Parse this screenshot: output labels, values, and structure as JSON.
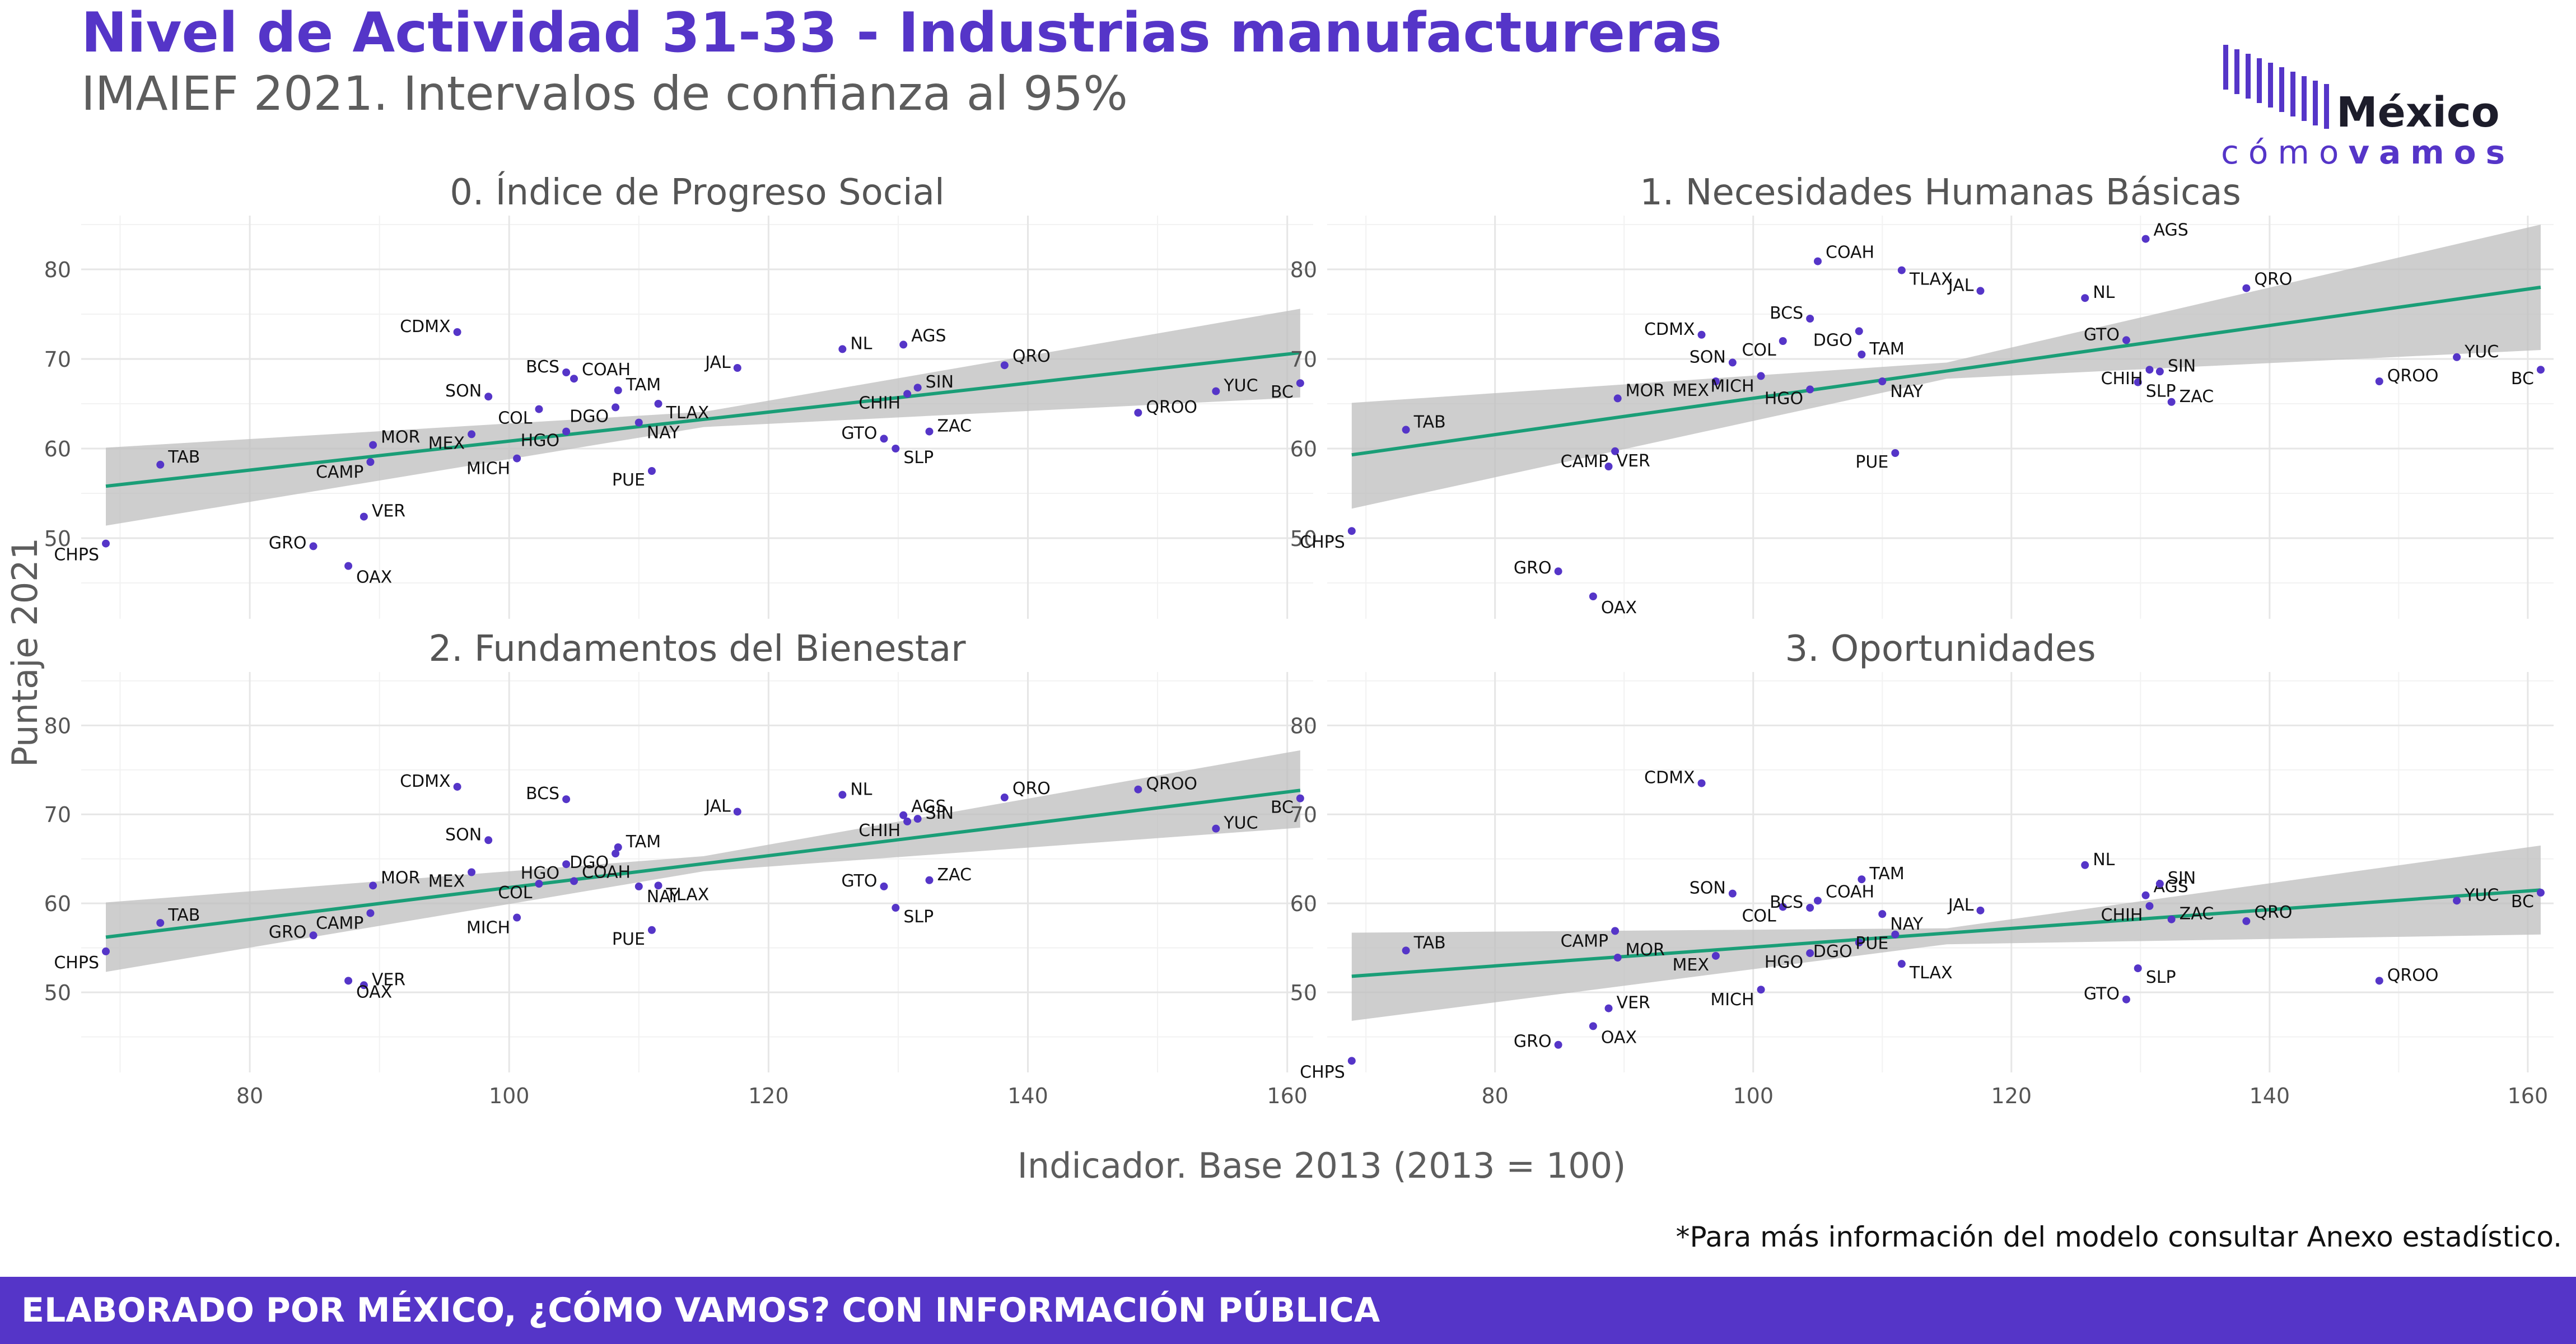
{
  "title": "Nivel de Actividad 31-33 - Industrias manufactureras",
  "subtitle": "IMAIEF 2021. Intervalos de confianza al 95%",
  "logo": {
    "word1": "México",
    "word2_light": "cómo",
    "word2_bold": "vamos"
  },
  "note": "*Para más información del modelo consultar Anexo estadístico.",
  "footer": "ELABORADO POR MÉXICO, ¿CÓMO VAMOS? CON INFORMACIÓN PÚBLICA",
  "colors": {
    "brand": "#5535c8",
    "point": "#5535c8",
    "trend": "#1a9e77",
    "ribbon": "#bdbdbd"
  },
  "chart_data": {
    "type": "scatter",
    "xlabel": "Indicador. Base 2013 (2013 = 100)",
    "ylabel": "Puntaje 2021",
    "xlim": [
      67,
      162
    ],
    "ylim": [
      41,
      86
    ],
    "xticks": [
      80,
      100,
      120,
      140,
      160
    ],
    "yticks": [
      50,
      60,
      70,
      80
    ],
    "grid": true,
    "x": {
      "CHPS": 68.9,
      "TAB": 73.1,
      "GRO": 84.9,
      "CAMP": 89.3,
      "VER": 88.8,
      "OAX": 87.6,
      "MOR": 89.5,
      "MEX": 97.1,
      "SON": 98.4,
      "CDMX": 96.0,
      "MICH": 100.6,
      "COL": 102.3,
      "HGO": 104.4,
      "BCS": 104.4,
      "COAH": 105.0,
      "DGO": 108.2,
      "TAM": 108.4,
      "NAY": 110.0,
      "TLAX": 111.5,
      "PUE": 111.0,
      "JAL": 117.6,
      "NL": 125.7,
      "GTO": 128.9,
      "AGS": 130.4,
      "SLP": 129.8,
      "CHIH": 130.7,
      "SIN": 131.5,
      "ZAC": 132.4,
      "QRO": 138.2,
      "QROO": 148.5,
      "YUC": 154.5,
      "BC": 161.0
    },
    "panels": [
      {
        "title": "0. Índice de Progreso Social",
        "trend": [
          [
            68.9,
            55.8
          ],
          [
            161.0,
            70.7
          ]
        ],
        "ci_lower": [
          [
            68.9,
            51.4
          ],
          [
            115,
            62.4
          ],
          [
            161.0,
            65.7
          ]
        ],
        "ci_upper": [
          [
            68.9,
            60.1
          ],
          [
            115,
            64.1
          ],
          [
            161.0,
            75.6
          ]
        ],
        "points": [
          {
            "label": "CHPS",
            "y": 49.4
          },
          {
            "label": "TAB",
            "y": 58.2
          },
          {
            "label": "GRO",
            "y": 49.1
          },
          {
            "label": "CAMP",
            "y": 58.5
          },
          {
            "label": "VER",
            "y": 52.4
          },
          {
            "label": "OAX",
            "y": 46.9
          },
          {
            "label": "MOR",
            "y": 60.4
          },
          {
            "label": "MEX",
            "y": 61.6
          },
          {
            "label": "SON",
            "y": 65.8
          },
          {
            "label": "CDMX",
            "y": 73.0
          },
          {
            "label": "MICH",
            "y": 58.9
          },
          {
            "label": "COL",
            "y": 64.4
          },
          {
            "label": "HGO",
            "y": 61.9
          },
          {
            "label": "BCS",
            "y": 68.5
          },
          {
            "label": "COAH",
            "y": 67.8
          },
          {
            "label": "DGO",
            "y": 64.6
          },
          {
            "label": "TAM",
            "y": 66.5
          },
          {
            "label": "NAY",
            "y": 62.9
          },
          {
            "label": "TLAX",
            "y": 65.0
          },
          {
            "label": "PUE",
            "y": 57.5
          },
          {
            "label": "JAL",
            "y": 69.0
          },
          {
            "label": "NL",
            "y": 71.1
          },
          {
            "label": "GTO",
            "y": 61.1
          },
          {
            "label": "AGS",
            "y": 71.6
          },
          {
            "label": "SLP",
            "y": 60.0
          },
          {
            "label": "CHIH",
            "y": 66.1
          },
          {
            "label": "SIN",
            "y": 66.8
          },
          {
            "label": "ZAC",
            "y": 61.9
          },
          {
            "label": "QRO",
            "y": 69.3
          },
          {
            "label": "QROO",
            "y": 64.0
          },
          {
            "label": "YUC",
            "y": 66.4
          },
          {
            "label": "BC",
            "y": 67.3
          }
        ]
      },
      {
        "title": "1. Necesidades Humanas Básicas",
        "trend": [
          [
            68.9,
            59.3
          ],
          [
            161.0,
            78.0
          ]
        ],
        "ci_lower": [
          [
            68.9,
            53.3
          ],
          [
            115,
            67.8
          ],
          [
            161.0,
            71.0
          ]
        ],
        "ci_upper": [
          [
            68.9,
            65.1
          ],
          [
            115,
            69.6
          ],
          [
            161.0,
            85.0
          ]
        ],
        "points": [
          {
            "label": "CHPS",
            "y": 50.8
          },
          {
            "label": "TAB",
            "y": 62.1
          },
          {
            "label": "GRO",
            "y": 46.3
          },
          {
            "label": "CAMP",
            "y": 59.7
          },
          {
            "label": "VER",
            "y": 58.0
          },
          {
            "label": "OAX",
            "y": 43.5
          },
          {
            "label": "MOR",
            "y": 65.6
          },
          {
            "label": "MEX",
            "y": 67.5
          },
          {
            "label": "SON",
            "y": 69.6
          },
          {
            "label": "CDMX",
            "y": 72.7
          },
          {
            "label": "MICH",
            "y": 68.1
          },
          {
            "label": "COL",
            "y": 72.0
          },
          {
            "label": "HGO",
            "y": 66.6
          },
          {
            "label": "BCS",
            "y": 74.5
          },
          {
            "label": "COAH",
            "y": 80.9
          },
          {
            "label": "DGO",
            "y": 73.1
          },
          {
            "label": "TAM",
            "y": 70.5
          },
          {
            "label": "NAY",
            "y": 67.5
          },
          {
            "label": "TLAX",
            "y": 79.9
          },
          {
            "label": "PUE",
            "y": 59.5
          },
          {
            "label": "JAL",
            "y": 77.6
          },
          {
            "label": "NL",
            "y": 76.8
          },
          {
            "label": "GTO",
            "y": 72.1
          },
          {
            "label": "AGS",
            "y": 83.4
          },
          {
            "label": "SLP",
            "y": 67.4
          },
          {
            "label": "CHIH",
            "y": 68.8
          },
          {
            "label": "SIN",
            "y": 68.6
          },
          {
            "label": "ZAC",
            "y": 65.2
          },
          {
            "label": "QRO",
            "y": 77.9
          },
          {
            "label": "QROO",
            "y": 67.5
          },
          {
            "label": "YUC",
            "y": 70.2
          },
          {
            "label": "BC",
            "y": 68.8
          }
        ]
      },
      {
        "title": "2. Fundamentos del Bienestar",
        "trend": [
          [
            68.9,
            56.2
          ],
          [
            161.0,
            72.7
          ]
        ],
        "ci_lower": [
          [
            68.9,
            52.3
          ],
          [
            115,
            63.6
          ],
          [
            161.0,
            68.5
          ]
        ],
        "ci_upper": [
          [
            68.9,
            60.1
          ],
          [
            115,
            65.3
          ],
          [
            161.0,
            77.2
          ]
        ],
        "points": [
          {
            "label": "CHPS",
            "y": 54.6
          },
          {
            "label": "TAB",
            "y": 57.8
          },
          {
            "label": "GRO",
            "y": 56.4
          },
          {
            "label": "CAMP",
            "y": 58.9
          },
          {
            "label": "VER",
            "y": 50.8
          },
          {
            "label": "OAX",
            "y": 51.3
          },
          {
            "label": "MOR",
            "y": 62.0
          },
          {
            "label": "MEX",
            "y": 63.5
          },
          {
            "label": "SON",
            "y": 67.1
          },
          {
            "label": "CDMX",
            "y": 73.1
          },
          {
            "label": "MICH",
            "y": 58.4
          },
          {
            "label": "COL",
            "y": 62.2
          },
          {
            "label": "HGO",
            "y": 64.4
          },
          {
            "label": "BCS",
            "y": 71.7
          },
          {
            "label": "COAH",
            "y": 62.5
          },
          {
            "label": "DGO",
            "y": 65.6
          },
          {
            "label": "TAM",
            "y": 66.3
          },
          {
            "label": "NAY",
            "y": 61.9
          },
          {
            "label": "TLAX",
            "y": 62.0
          },
          {
            "label": "PUE",
            "y": 57.0
          },
          {
            "label": "JAL",
            "y": 70.3
          },
          {
            "label": "NL",
            "y": 72.2
          },
          {
            "label": "GTO",
            "y": 61.9
          },
          {
            "label": "AGS",
            "y": 69.9
          },
          {
            "label": "SLP",
            "y": 59.5
          },
          {
            "label": "CHIH",
            "y": 69.2
          },
          {
            "label": "SIN",
            "y": 69.5
          },
          {
            "label": "ZAC",
            "y": 62.6
          },
          {
            "label": "QRO",
            "y": 71.9
          },
          {
            "label": "QROO",
            "y": 72.8
          },
          {
            "label": "YUC",
            "y": 68.4
          },
          {
            "label": "BC",
            "y": 71.8
          }
        ]
      },
      {
        "title": "3. Oportunidades",
        "trend": [
          [
            68.9,
            51.8
          ],
          [
            161.0,
            61.5
          ]
        ],
        "ci_lower": [
          [
            68.9,
            46.8
          ],
          [
            115,
            55.4
          ],
          [
            161.0,
            56.5
          ]
        ],
        "ci_upper": [
          [
            68.9,
            56.7
          ],
          [
            115,
            57.2
          ],
          [
            161.0,
            66.5
          ]
        ],
        "points": [
          {
            "label": "CHPS",
            "y": 42.3
          },
          {
            "label": "TAB",
            "y": 54.7
          },
          {
            "label": "GRO",
            "y": 44.1
          },
          {
            "label": "CAMP",
            "y": 56.9
          },
          {
            "label": "VER",
            "y": 48.2
          },
          {
            "label": "OAX",
            "y": 46.2
          },
          {
            "label": "MOR",
            "y": 53.9
          },
          {
            "label": "MEX",
            "y": 54.1
          },
          {
            "label": "SON",
            "y": 61.1
          },
          {
            "label": "CDMX",
            "y": 73.5
          },
          {
            "label": "MICH",
            "y": 50.3
          },
          {
            "label": "COL",
            "y": 59.6
          },
          {
            "label": "HGO",
            "y": 54.4
          },
          {
            "label": "BCS",
            "y": 59.5
          },
          {
            "label": "COAH",
            "y": 60.3
          },
          {
            "label": "DGO",
            "y": 55.6
          },
          {
            "label": "TAM",
            "y": 62.7
          },
          {
            "label": "NAY",
            "y": 58.8
          },
          {
            "label": "TLAX",
            "y": 53.2
          },
          {
            "label": "PUE",
            "y": 56.5
          },
          {
            "label": "JAL",
            "y": 59.2
          },
          {
            "label": "NL",
            "y": 64.3
          },
          {
            "label": "GTO",
            "y": 49.2
          },
          {
            "label": "AGS",
            "y": 60.9
          },
          {
            "label": "SLP",
            "y": 52.7
          },
          {
            "label": "CHIH",
            "y": 59.7
          },
          {
            "label": "SIN",
            "y": 62.2
          },
          {
            "label": "ZAC",
            "y": 58.2
          },
          {
            "label": "QRO",
            "y": 58.0
          },
          {
            "label": "QROO",
            "y": 51.3
          },
          {
            "label": "YUC",
            "y": 60.3
          },
          {
            "label": "BC",
            "y": 61.2
          }
        ]
      }
    ]
  }
}
